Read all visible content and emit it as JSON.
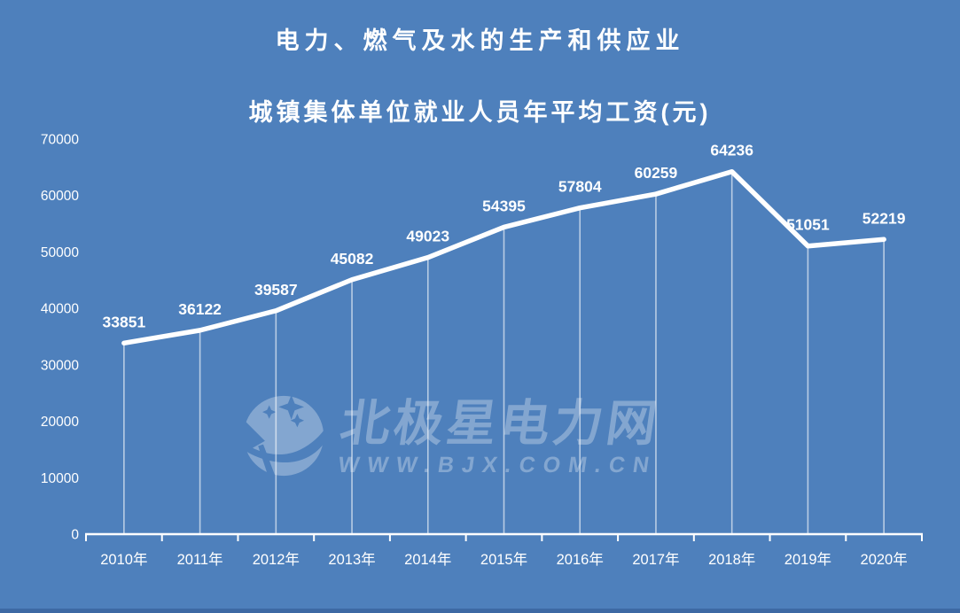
{
  "header": {
    "title_line1": "电力、燃气及水的生产和供应业",
    "title_line2": "城镇集体单位就业人员年平均工资(元)"
  },
  "watermark": {
    "brand": "北极星电力网",
    "url": "WWW.BJX.COM.CN",
    "logo_icon": "polaris-star-logo"
  },
  "chart_data": {
    "type": "line",
    "title": "电力、燃气及水的生产和供应业 城镇集体单位就业人员年平均工资(元)",
    "categories": [
      "2010年",
      "2011年",
      "2012年",
      "2013年",
      "2014年",
      "2015年",
      "2016年",
      "2017年",
      "2018年",
      "2019年",
      "2020年"
    ],
    "values": [
      33851,
      36122,
      39587,
      45082,
      49023,
      54395,
      57804,
      60259,
      64236,
      51051,
      52219
    ],
    "xlabel": "",
    "ylabel": "",
    "ylim": [
      0,
      70000
    ],
    "yticks": [
      0,
      10000,
      20000,
      30000,
      40000,
      50000,
      60000,
      70000
    ],
    "grid": false,
    "legend": false,
    "data_labels": true,
    "drop_lines": true
  },
  "colors": {
    "background": "#4e80bc",
    "series_line": "#ffffff",
    "text": "#ffffff",
    "watermark": "rgba(255,255,255,0.30)",
    "drop_line": "rgba(255,255,255,0.6)"
  }
}
